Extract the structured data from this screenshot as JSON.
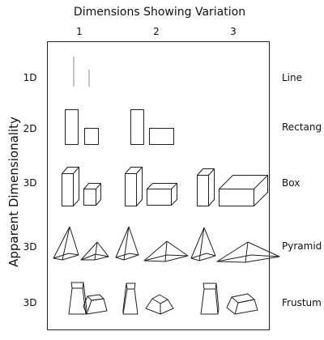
{
  "title": "Dimensions Showing Variation",
  "columns": [
    "1",
    "2",
    "3"
  ],
  "y_axis_label": "Apparent Dimensionality",
  "rows": [
    {
      "dimensionality": "1D",
      "shape": "Line"
    },
    {
      "dimensionality": "2D",
      "shape": "Rectang"
    },
    {
      "dimensionality": "3D",
      "shape": "Box"
    },
    {
      "dimensionality": "3D",
      "shape": "Pyramid"
    },
    {
      "dimensionality": "3D",
      "shape": "Frustum"
    }
  ],
  "colors": {
    "stroke": "#222222",
    "line_gray": "#888888"
  }
}
